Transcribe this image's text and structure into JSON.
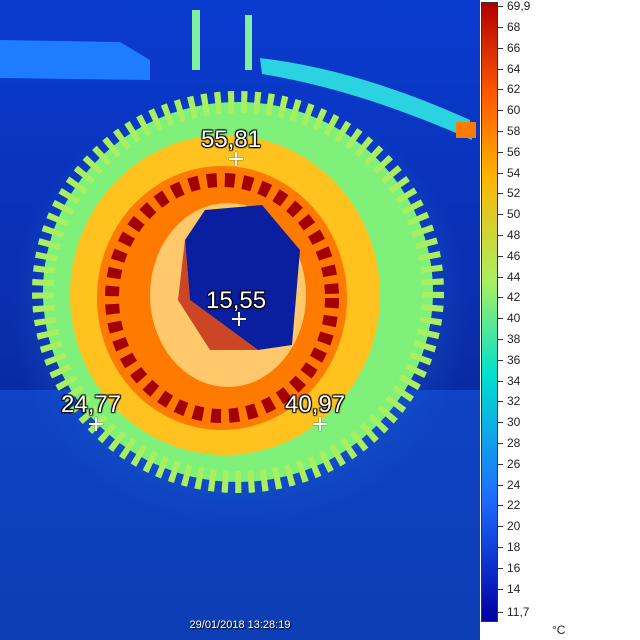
{
  "measurements": [
    {
      "label": "55,81"
    },
    {
      "label": "15,55"
    },
    {
      "label": "24,77"
    },
    {
      "label": "40,97"
    }
  ],
  "timestamp": "29/01/2018 13:28:19",
  "scale": {
    "max_label": "69,9",
    "min_label": "11,7",
    "unit": "°C",
    "ticks": [
      "68",
      "66",
      "64",
      "62",
      "60",
      "58",
      "56",
      "54",
      "52",
      "50",
      "48",
      "46",
      "44",
      "42",
      "40",
      "38",
      "36",
      "34",
      "32",
      "30",
      "28",
      "26",
      "24",
      "22",
      "20",
      "18",
      "16",
      "14"
    ]
  },
  "palette": {
    "cold": "#0000a0",
    "cool": "#1e6cff",
    "mid": "#00e0d0",
    "warm": "#a8f060",
    "hot": "#ffb400",
    "very_hot": "#ff5a00",
    "max": "#b00000"
  }
}
